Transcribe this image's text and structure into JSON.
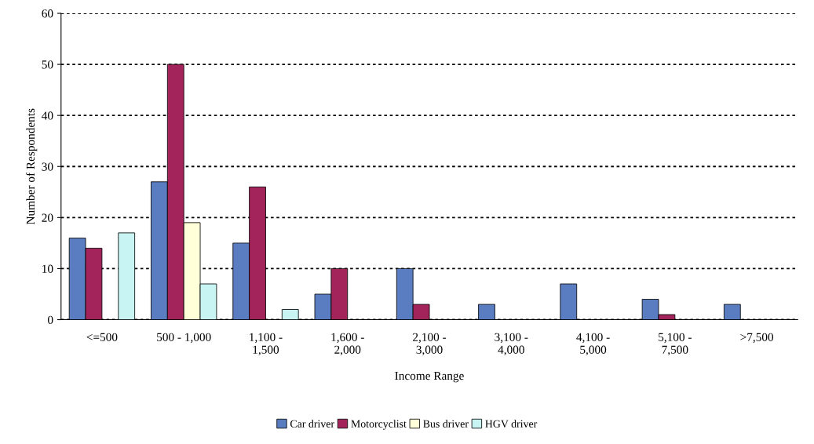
{
  "chart_data": {
    "type": "bar",
    "xlabel": "Income Range",
    "ylabel": "Number of Respondents",
    "categories": [
      "<=500",
      "500 - 1,000",
      "1,100 -\n1,500",
      "1,600 -\n2,000",
      "2,100 -\n3,000",
      "3,100 -\n4,000",
      "4,100 -\n5,000",
      "5,100 -\n7,500",
      ">7,500"
    ],
    "series": [
      {
        "name": "Car driver",
        "color": "#5a7cc0",
        "values": [
          16,
          27,
          15,
          5,
          10,
          3,
          7,
          4,
          3
        ]
      },
      {
        "name": "Motorcyclist",
        "color": "#a3245a",
        "values": [
          14,
          50,
          26,
          10,
          3,
          null,
          null,
          1,
          null
        ]
      },
      {
        "name": "Bus driver",
        "color": "#ffffd8",
        "values": [
          null,
          19,
          null,
          null,
          null,
          null,
          null,
          null,
          null
        ]
      },
      {
        "name": "HGV driver",
        "color": "#c8f4f4",
        "values": [
          17,
          7,
          2,
          null,
          null,
          null,
          null,
          null,
          null
        ]
      }
    ],
    "ylim": [
      0,
      60
    ],
    "yticks": [
      0,
      10,
      20,
      30,
      40,
      50,
      60
    ],
    "grid": "y",
    "legend": "bottom"
  }
}
